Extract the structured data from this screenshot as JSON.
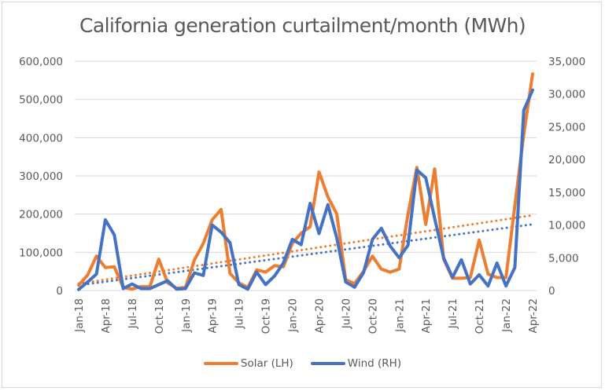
{
  "chart_data": {
    "type": "line",
    "title": "California generation curtailment/month (MWh)",
    "xlabel": "",
    "ylabel_left": "",
    "ylabel_right": "",
    "grid": true,
    "legend_position": "bottom",
    "y_left": {
      "range": [
        0,
        600000
      ],
      "ticks": [
        0,
        100000,
        200000,
        300000,
        400000,
        500000,
        600000
      ],
      "tick_labels": [
        "0",
        "100,000",
        "200,000",
        "300,000",
        "400,000",
        "500,000",
        "600,000"
      ]
    },
    "y_right": {
      "range": [
        0,
        35000
      ],
      "ticks": [
        0,
        5000,
        10000,
        15000,
        20000,
        25000,
        30000,
        35000
      ],
      "tick_labels": [
        "0",
        "5,000",
        "10,000",
        "15,000",
        "20,000",
        "25,000",
        "30,000",
        "35,000"
      ]
    },
    "x": [
      "Jan-18",
      "Feb-18",
      "Mar-18",
      "Apr-18",
      "May-18",
      "Jun-18",
      "Jul-18",
      "Aug-18",
      "Sep-18",
      "Oct-18",
      "Nov-18",
      "Dec-18",
      "Jan-19",
      "Feb-19",
      "Mar-19",
      "Apr-19",
      "May-19",
      "Jun-19",
      "Jul-19",
      "Aug-19",
      "Sep-19",
      "Oct-19",
      "Nov-19",
      "Dec-19",
      "Jan-20",
      "Feb-20",
      "Mar-20",
      "Apr-20",
      "May-20",
      "Jun-20",
      "Jul-20",
      "Aug-20",
      "Sep-20",
      "Oct-20",
      "Nov-20",
      "Dec-20",
      "Jan-21",
      "Feb-21",
      "Mar-21",
      "Apr-21",
      "May-21",
      "Jun-21",
      "Jul-21",
      "Aug-21",
      "Sep-21",
      "Oct-21",
      "Nov-21",
      "Dec-21",
      "Jan-22",
      "Feb-22",
      "Mar-22",
      "Apr-22"
    ],
    "x_tick_labels": [
      "Jan-18",
      "Apr-18",
      "Jul-18",
      "Oct-18",
      "Jan-19",
      "Apr-19",
      "Jul-19",
      "Oct-19",
      "Jan-20",
      "Apr-20",
      "Jul-20",
      "Oct-20",
      "Jan-21",
      "Apr-21",
      "Jul-21",
      "Oct-21",
      "Jan-22",
      "Apr-22"
    ],
    "series": [
      {
        "name": "Solar (LH)",
        "axis": "left",
        "color": "#ED7D31",
        "values": [
          14000,
          40000,
          90000,
          60000,
          62000,
          8000,
          4000,
          10000,
          10000,
          82000,
          20000,
          6000,
          8000,
          80000,
          123000,
          185000,
          212000,
          45000,
          20000,
          8000,
          54000,
          48000,
          65000,
          62000,
          123000,
          150000,
          167000,
          310000,
          245000,
          200000,
          28000,
          18000,
          50000,
          90000,
          56000,
          48000,
          56000,
          200000,
          322000,
          173000,
          318000,
          82000,
          32000,
          32000,
          34000,
          132000,
          43000,
          34000,
          34000,
          222000,
          407000,
          567000
        ],
        "trendline": {
          "type": "linear",
          "start": 18000,
          "end": 197000
        }
      },
      {
        "name": "Wind (RH)",
        "axis": "right",
        "color": "#4472C4",
        "values": [
          150,
          1300,
          2500,
          10800,
          8500,
          300,
          1000,
          300,
          300,
          900,
          1500,
          200,
          300,
          2700,
          2300,
          10000,
          8900,
          7300,
          900,
          200,
          2800,
          900,
          2200,
          4200,
          7800,
          7000,
          13300,
          8700,
          13100,
          8000,
          1300,
          500,
          2700,
          7800,
          9500,
          6800,
          5000,
          6900,
          18400,
          17200,
          11000,
          5000,
          2000,
          4700,
          1000,
          2400,
          700,
          4200,
          700,
          3500,
          27500,
          30600
        ],
        "trendline": {
          "type": "linear",
          "start": 800,
          "end": 10100
        }
      }
    ]
  },
  "legend": {
    "items": [
      {
        "label": "Solar (LH)",
        "color": "#ED7D31"
      },
      {
        "label": "Wind (RH)",
        "color": "#4472C4"
      }
    ]
  }
}
